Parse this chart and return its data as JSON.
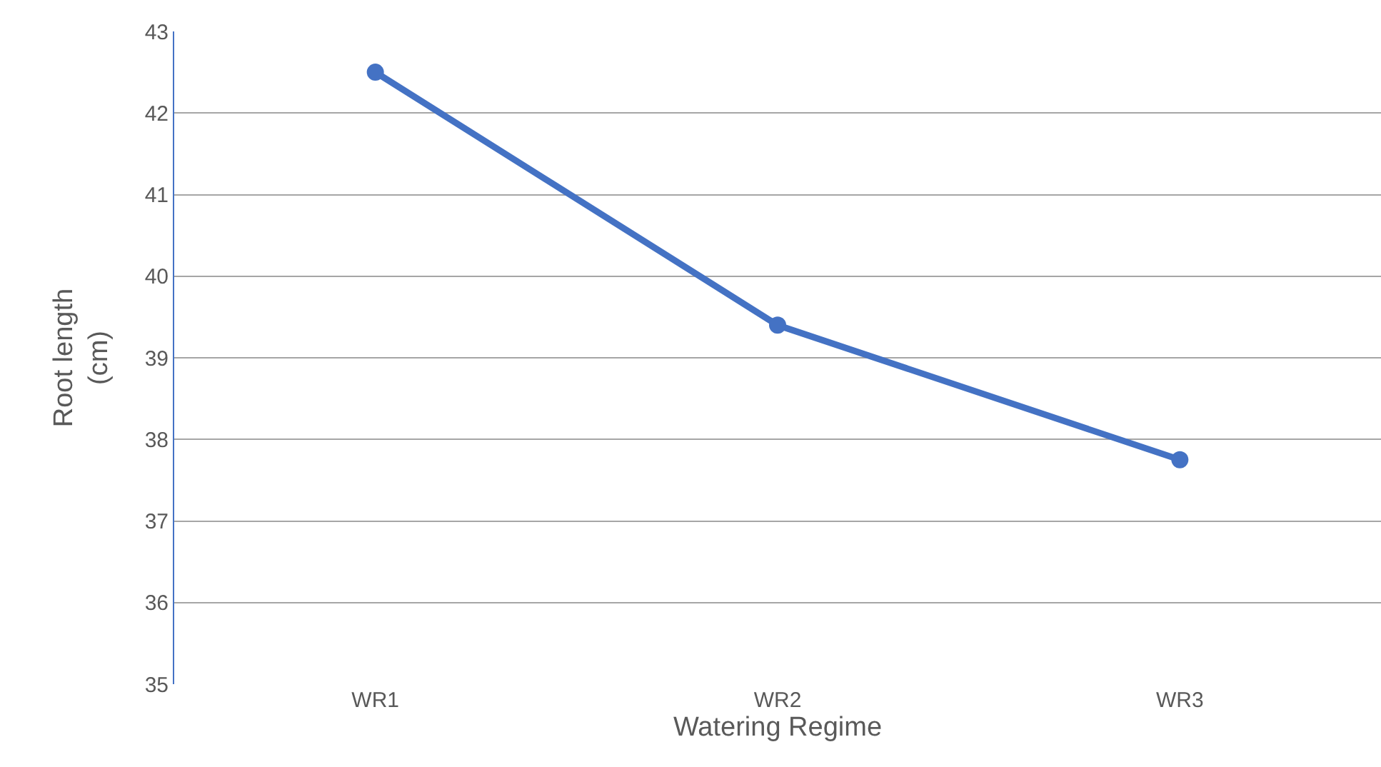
{
  "chart_data": {
    "type": "line",
    "xlabel": "Watering Regime",
    "ylabel": "Root length\n(cm)",
    "categories": [
      "WR1",
      "WR2",
      "WR3"
    ],
    "series": [
      {
        "color": "#4472c4",
        "values": [
          42.5,
          39.4,
          37.75
        ]
      }
    ],
    "ylim": [
      35,
      43
    ],
    "yticks": [
      35,
      36,
      37,
      38,
      39,
      40,
      41,
      42,
      43
    ],
    "grid": "y",
    "marker": "circle",
    "line_style": "solid",
    "legend": false
  }
}
